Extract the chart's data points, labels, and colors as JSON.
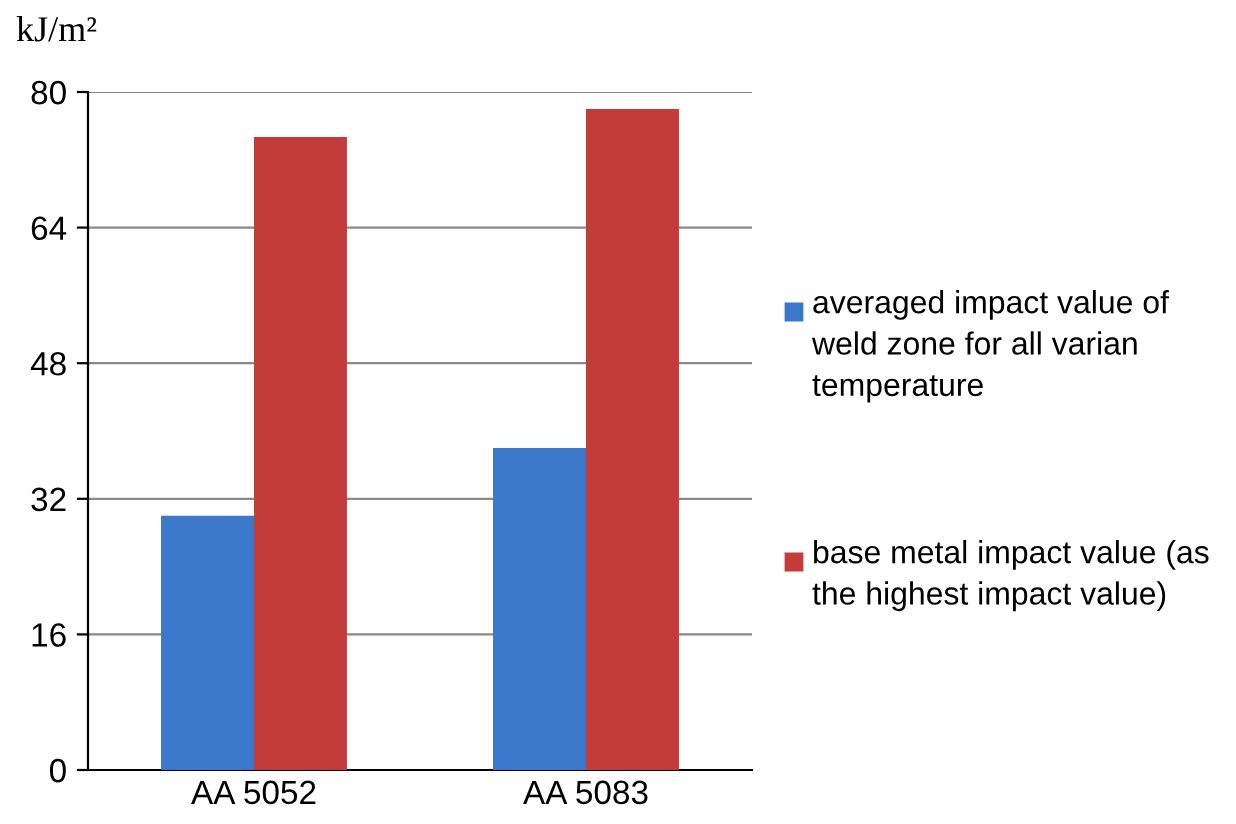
{
  "chart_data": {
    "type": "bar",
    "ylabel": "kJ/m²",
    "categories": [
      "AA 5052",
      "AA 5083"
    ],
    "series": [
      {
        "name": "averaged impact value of weld zone for all varian temperature",
        "color": "#3b78c9",
        "values": [
          30,
          38
        ]
      },
      {
        "name": "base metal impact value (as the highest impact value)",
        "color": "#c43c3a",
        "values": [
          74.7,
          78
        ]
      }
    ],
    "ylim": [
      0,
      80
    ],
    "yticks": [
      0,
      16,
      32,
      48,
      64,
      80
    ],
    "grid": "y",
    "legend": "right"
  }
}
